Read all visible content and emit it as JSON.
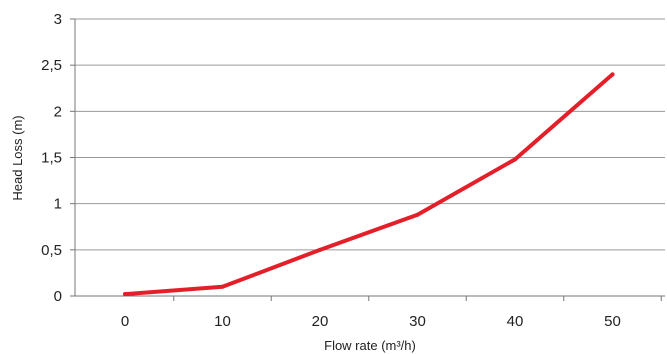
{
  "chart_data": {
    "type": "line",
    "title": "",
    "xlabel": "Flow rate (m³/h)",
    "ylabel": "Head Loss (m)",
    "x": [
      0,
      10,
      20,
      30,
      40,
      50
    ],
    "x_tick_labels": [
      "0",
      "10",
      "20",
      "30",
      "40",
      "50"
    ],
    "y_ticks": [
      0,
      0.5,
      1,
      1.5,
      2,
      2.5,
      3
    ],
    "y_tick_labels": [
      "0",
      "0,5",
      "1",
      "1,5",
      "2",
      "2,5",
      "3"
    ],
    "ylim": [
      0,
      3
    ],
    "grid": "horizontal",
    "series": [
      {
        "values": [
          0.02,
          0.1,
          0.5,
          0.88,
          1.48,
          2.4
        ],
        "color": "#e3202a"
      }
    ]
  }
}
